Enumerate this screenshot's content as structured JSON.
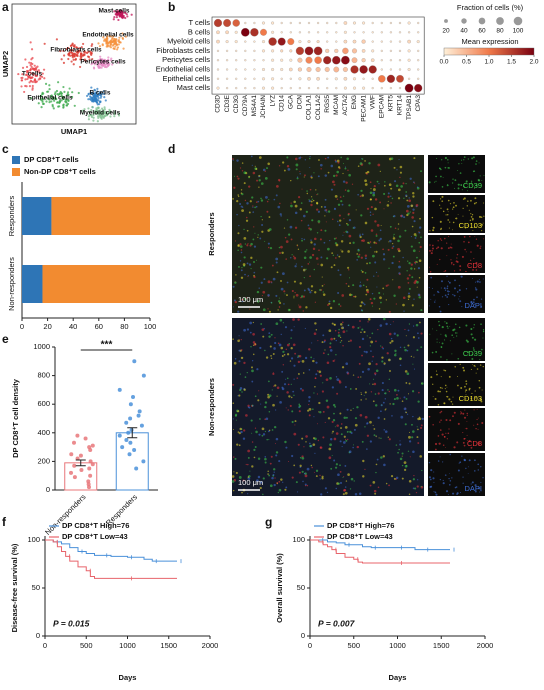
{
  "chart_data": [
    {
      "type": "umap",
      "panel_label": "a",
      "x_label": "UMAP1",
      "y_label": "UMAP2",
      "clusters": [
        {
          "name": "Mast cells",
          "color": "#c2185b"
        },
        {
          "name": "Endothelial cells",
          "color": "#f5913e"
        },
        {
          "name": "Fibroblasts cells",
          "color": "#d9342b"
        },
        {
          "name": "Pericytes cells",
          "color": "#e68bc4"
        },
        {
          "name": "T cells",
          "color": "#e8474d"
        },
        {
          "name": "Epithelial cells",
          "color": "#3aa84a"
        },
        {
          "name": "B cells",
          "color": "#2f7ec1"
        },
        {
          "name": "Myeloid cells",
          "color": "#7fc08f"
        }
      ]
    },
    {
      "type": "dotplot",
      "panel_label": "b",
      "genes": [
        "CD3D",
        "CD3E",
        "CD3G",
        "CD79A",
        "MS4A1",
        "JCHAIN",
        "LYZ",
        "CD14",
        "GCA",
        "DCN",
        "COL1A1",
        "COL1A2",
        "RGS5",
        "MCAM",
        "ACTA2",
        "ENG",
        "PECAM1",
        "VWF",
        "EPCAM",
        "KRT5",
        "KRT14",
        "TPSAB1",
        "CPA3"
      ],
      "cell_types": [
        "T cells",
        "B cells",
        "Myeloid cells",
        "Fibroblasts cells",
        "Pericytes cells",
        "Endothelial cells",
        "Epithelial cells",
        "Mast cells"
      ],
      "fraction": [
        [
          85,
          80,
          70,
          5,
          5,
          10,
          10,
          5,
          5,
          5,
          5,
          5,
          5,
          5,
          15,
          10,
          10,
          5,
          5,
          5,
          5,
          10,
          5
        ],
        [
          15,
          15,
          10,
          95,
          90,
          60,
          10,
          5,
          5,
          5,
          5,
          5,
          5,
          5,
          10,
          5,
          5,
          5,
          5,
          5,
          5,
          5,
          5
        ],
        [
          15,
          10,
          10,
          5,
          5,
          10,
          90,
          80,
          60,
          10,
          10,
          10,
          5,
          5,
          15,
          15,
          20,
          5,
          5,
          5,
          5,
          15,
          10
        ],
        [
          5,
          5,
          5,
          5,
          5,
          10,
          10,
          10,
          10,
          85,
          95,
          95,
          20,
          20,
          50,
          30,
          15,
          10,
          5,
          5,
          5,
          10,
          5
        ],
        [
          5,
          5,
          5,
          5,
          5,
          5,
          10,
          10,
          10,
          30,
          60,
          70,
          85,
          90,
          95,
          40,
          20,
          15,
          5,
          5,
          5,
          10,
          5
        ],
        [
          5,
          5,
          5,
          5,
          5,
          10,
          10,
          10,
          15,
          20,
          30,
          30,
          30,
          40,
          30,
          85,
          90,
          85,
          5,
          5,
          5,
          10,
          5
        ],
        [
          5,
          5,
          5,
          5,
          5,
          10,
          10,
          5,
          5,
          10,
          15,
          15,
          5,
          10,
          15,
          10,
          5,
          5,
          70,
          85,
          75,
          5,
          5
        ],
        [
          10,
          5,
          5,
          5,
          5,
          10,
          10,
          5,
          5,
          5,
          5,
          5,
          5,
          5,
          10,
          10,
          10,
          5,
          5,
          5,
          5,
          95,
          85
        ]
      ],
      "expression": [
        [
          1.5,
          1.4,
          1.2,
          0.1,
          0.1,
          0.1,
          0.1,
          0.1,
          0.1,
          0.1,
          0.1,
          0.1,
          0.1,
          0.1,
          0.2,
          0.1,
          0.1,
          0.1,
          0.1,
          0.1,
          0.1,
          0.1,
          0.1
        ],
        [
          0.2,
          0.2,
          0.1,
          2.0,
          1.6,
          1.0,
          0.1,
          0.1,
          0.1,
          0.1,
          0.1,
          0.1,
          0.1,
          0.1,
          0.1,
          0.1,
          0.1,
          0.1,
          0.1,
          0.1,
          0.1,
          0.1,
          0.1
        ],
        [
          0.2,
          0.1,
          0.1,
          0.1,
          0.1,
          0.1,
          1.6,
          1.8,
          1.0,
          0.1,
          0.2,
          0.2,
          0.1,
          0.1,
          0.2,
          0.2,
          0.3,
          0.1,
          0.1,
          0.1,
          0.1,
          0.2,
          0.1
        ],
        [
          0.1,
          0.1,
          0.1,
          0.1,
          0.1,
          0.1,
          0.1,
          0.2,
          0.2,
          1.5,
          1.8,
          1.7,
          0.3,
          0.3,
          0.7,
          0.4,
          0.2,
          0.1,
          0.1,
          0.1,
          0.1,
          0.1,
          0.1
        ],
        [
          0.1,
          0.1,
          0.1,
          0.1,
          0.1,
          0.1,
          0.1,
          0.1,
          0.1,
          0.4,
          0.9,
          1.0,
          1.7,
          1.8,
          1.9,
          0.5,
          0.3,
          0.2,
          0.1,
          0.1,
          0.1,
          0.1,
          0.1
        ],
        [
          0.1,
          0.1,
          0.1,
          0.1,
          0.1,
          0.1,
          0.1,
          0.1,
          0.2,
          0.3,
          0.4,
          0.4,
          0.4,
          0.5,
          0.4,
          1.6,
          1.8,
          1.7,
          0.1,
          0.1,
          0.1,
          0.1,
          0.1
        ],
        [
          0.1,
          0.1,
          0.1,
          0.1,
          0.1,
          0.1,
          0.1,
          0.1,
          0.1,
          0.1,
          0.2,
          0.2,
          0.1,
          0.1,
          0.2,
          0.1,
          0.1,
          0.1,
          1.0,
          1.7,
          1.4,
          0.1,
          0.1
        ],
        [
          0.1,
          0.1,
          0.1,
          0.1,
          0.1,
          0.1,
          0.1,
          0.1,
          0.1,
          0.1,
          0.1,
          0.1,
          0.1,
          0.1,
          0.1,
          0.1,
          0.1,
          0.1,
          0.1,
          0.1,
          0.1,
          2.0,
          1.9
        ]
      ],
      "size_legend_title": "Fraction of cells (%)",
      "size_legend": [
        20,
        40,
        60,
        80,
        100
      ],
      "color_legend_title": "Mean expression",
      "color_range": [
        "#fff0d9",
        "#f07a4a",
        "#7a0010"
      ],
      "clim": [
        0,
        2
      ],
      "cticks": [
        {
          "value": 0,
          "label": "0.0"
        },
        {
          "value": 0.5,
          "label": "0.5"
        },
        {
          "value": 1,
          "label": "1.0"
        },
        {
          "value": 1.5,
          "label": "1.5"
        },
        {
          "value": 2,
          "label": "2.0"
        }
      ]
    },
    {
      "type": "stacked_barh",
      "panel_label": "c",
      "categories": [
        "Responders",
        "Non-responders"
      ],
      "series": [
        {
          "name": "DP CD8⁺T cells",
          "color": "#2e75b6",
          "values": [
            23,
            16
          ]
        },
        {
          "name": "Non-DP CD8⁺T cells",
          "color": "#f28b30",
          "values": [
            77,
            84
          ]
        }
      ],
      "xlim": [
        0,
        100
      ],
      "xticks": [
        0,
        20,
        40,
        60,
        80,
        100
      ]
    },
    {
      "type": "images",
      "panel_label": "d",
      "rows": [
        "Responders",
        "Non-responders"
      ],
      "channels": [
        {
          "name": "CD39",
          "color": "#3fd04f"
        },
        {
          "name": "CD103",
          "color": "#f0e030"
        },
        {
          "name": "CD8",
          "color": "#e8333a"
        },
        {
          "name": "DAPI",
          "color": "#3f6fd8"
        }
      ],
      "scale_bar": "100 μm"
    },
    {
      "type": "bar_dots",
      "panel_label": "e",
      "y_label": "DP CD8⁺T cell density",
      "categories": [
        "Non-responders",
        "Responders"
      ],
      "values": [
        190,
        400
      ],
      "errors": [
        20,
        35
      ],
      "points": [
        [
          60,
          90,
          120,
          150,
          170,
          200,
          220,
          250,
          280,
          300,
          330,
          360,
          100,
          140,
          180,
          40,
          20,
          240,
          310,
          380
        ],
        [
          150,
          200,
          250,
          300,
          350,
          380,
          420,
          450,
          500,
          550,
          600,
          650,
          700,
          800,
          900,
          330,
          280,
          400,
          470,
          520
        ]
      ],
      "colors": [
        "#e8777a",
        "#4a90d9"
      ],
      "ylim": [
        0,
        1000
      ],
      "yticks": [
        0,
        200,
        400,
        600,
        800,
        1000
      ],
      "significance": "***"
    },
    {
      "type": "km",
      "panel_label": "f",
      "y_label": "Disease-free survival (%)",
      "x_label": "Days",
      "annotation": "P = 0.015",
      "series": [
        {
          "name": "DP CD8⁺T High=76",
          "color": "#4a90d9",
          "x": [
            0,
            100,
            200,
            300,
            400,
            500,
            600,
            700,
            800,
            900,
            1000,
            1100,
            1200,
            1300,
            1400,
            1500,
            1600
          ],
          "values": [
            100,
            98,
            96,
            92,
            88,
            86,
            84,
            84,
            83,
            83,
            82,
            82,
            80,
            78,
            78,
            78,
            78
          ]
        },
        {
          "name": "DP CD8⁺T Low=43",
          "color": "#e8646b",
          "x": [
            0,
            100,
            150,
            200,
            250,
            300,
            400,
            500,
            550,
            600,
            1000,
            1600
          ],
          "values": [
            100,
            98,
            93,
            88,
            83,
            78,
            72,
            68,
            62,
            60,
            60,
            60
          ]
        }
      ],
      "xlim": [
        0,
        2000
      ],
      "xticks": [
        0,
        500,
        1000,
        1500,
        2000
      ],
      "ylim": [
        0,
        100
      ],
      "yticks": [
        0,
        50,
        100
      ]
    },
    {
      "type": "km",
      "panel_label": "g",
      "y_label": "Overall survival (%)",
      "x_label": "Days",
      "annotation": "P = 0.007",
      "series": [
        {
          "name": "DP CD8⁺T High=76",
          "color": "#4a90d9",
          "x": [
            0,
            100,
            200,
            300,
            400,
            500,
            600,
            700,
            800,
            900,
            1000,
            1100,
            1200,
            1300,
            1400,
            1500,
            1600
          ],
          "values": [
            100,
            100,
            98,
            97,
            95,
            95,
            93,
            92,
            92,
            92,
            92,
            92,
            90,
            90,
            90,
            90,
            90
          ]
        },
        {
          "name": "DP CD8⁺T Low=43",
          "color": "#e8646b",
          "x": [
            0,
            100,
            150,
            200,
            250,
            300,
            400,
            500,
            550,
            600,
            1000,
            1600
          ],
          "values": [
            100,
            98,
            95,
            93,
            90,
            86,
            82,
            80,
            77,
            76,
            76,
            76
          ]
        }
      ],
      "xlim": [
        0,
        2000
      ],
      "xticks": [
        0,
        500,
        1000,
        1500,
        2000
      ],
      "ylim": [
        0,
        100
      ],
      "yticks": [
        0,
        50,
        100
      ]
    }
  ]
}
